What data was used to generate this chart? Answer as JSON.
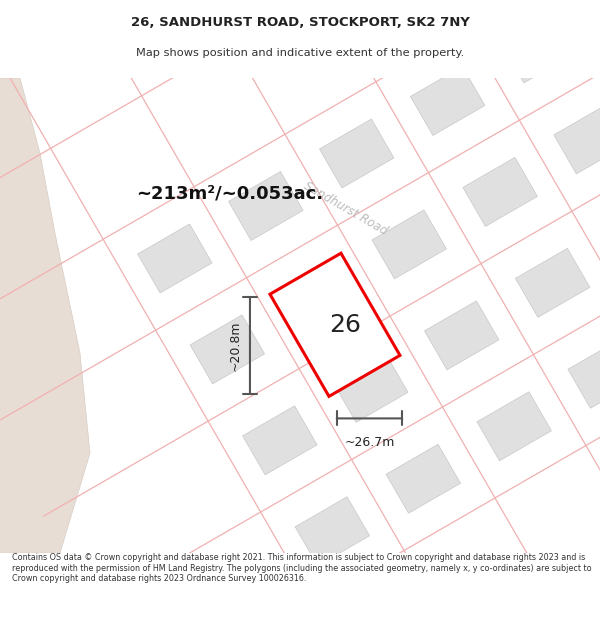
{
  "title_line1": "26, SANDHURST ROAD, STOCKPORT, SK2 7NY",
  "title_line2": "Map shows position and indicative extent of the property.",
  "area_text": "~213m²/~0.053ac.",
  "property_number": "26",
  "dim_width": "~26.7m",
  "dim_height": "~20.8m",
  "footer": "Contains OS data © Crown copyright and database right 2021. This information is subject to Crown copyright and database rights 2023 and is reproduced with the permission of HM Land Registry. The polygons (including the associated geometry, namely x, y co-ordinates) are subject to Crown copyright and database rights 2023 Ordnance Survey 100026316.",
  "bg_color": "#ffffff",
  "road_fill": "#e8ddd4",
  "building_fill": "#e0e0e0",
  "building_edge": "#cccccc",
  "road_line_color": "#f0b0b0",
  "property_color": "#ee0000",
  "dim_line_color": "#555555",
  "street_label_color": "#bbbbbb",
  "map_bg": "#ffffff"
}
